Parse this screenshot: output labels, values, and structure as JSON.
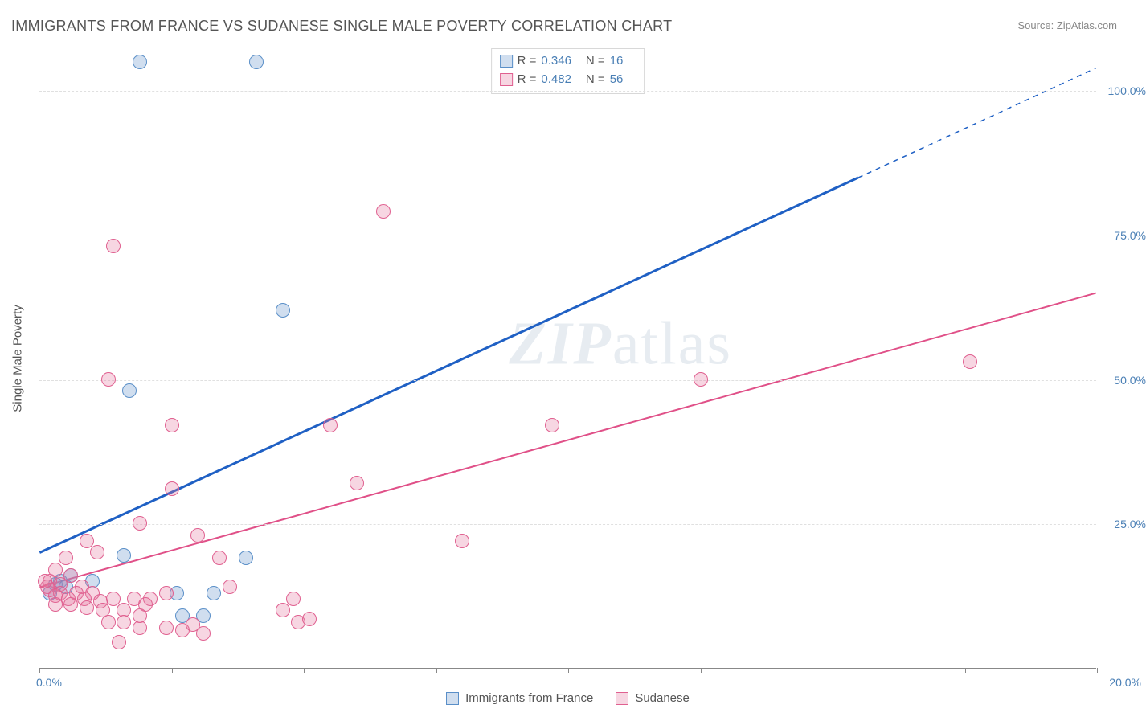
{
  "title": "IMMIGRANTS FROM FRANCE VS SUDANESE SINGLE MALE POVERTY CORRELATION CHART",
  "source_label": "Source: ZipAtlas.com",
  "y_axis_title": "Single Male Poverty",
  "watermark": {
    "bold": "ZIP",
    "rest": "atlas"
  },
  "chart": {
    "type": "scatter",
    "xlim": [
      0,
      20
    ],
    "ylim": [
      0,
      108
    ],
    "x_tick_step": 2.5,
    "y_tick_step": 25,
    "x_tick_labels": {
      "0": "0.0%",
      "20": "20.0%"
    },
    "y_tick_labels": {
      "25": "25.0%",
      "50": "50.0%",
      "75": "75.0%",
      "100": "100.0%"
    },
    "grid_color": "#e0e0e0",
    "axis_color": "#888888",
    "label_color": "#4a7fb5",
    "background_color": "#ffffff"
  },
  "series": [
    {
      "key": "france",
      "label": "Immigrants from France",
      "r": "0.346",
      "n": "16",
      "marker_fill": "rgba(120,160,210,0.35)",
      "marker_stroke": "#5a8fc8",
      "line_color": "#1f60c4",
      "line_width": 3,
      "trend": {
        "x1": 0,
        "y1": 20,
        "x2": 15.5,
        "y2": 85,
        "dash_after_x": 15.5,
        "dash_x2": 20,
        "dash_y2": 104
      },
      "points": [
        [
          1.9,
          105
        ],
        [
          4.1,
          105
        ],
        [
          4.6,
          62
        ],
        [
          1.7,
          48
        ],
        [
          1.6,
          19.5
        ],
        [
          3.9,
          19
        ],
        [
          1.0,
          15
        ],
        [
          2.6,
          13
        ],
        [
          3.3,
          13
        ],
        [
          2.7,
          9
        ],
        [
          3.1,
          9
        ],
        [
          0.4,
          15
        ],
        [
          0.2,
          13
        ],
        [
          0.6,
          16
        ],
        [
          0.3,
          14.5
        ],
        [
          0.5,
          14
        ]
      ]
    },
    {
      "key": "sudanese",
      "label": "Sudanese",
      "r": "0.482",
      "n": "56",
      "marker_fill": "rgba(230,120,160,0.30)",
      "marker_stroke": "#e06090",
      "line_color": "#e05088",
      "line_width": 2,
      "trend": {
        "x1": 0,
        "y1": 14,
        "x2": 20,
        "y2": 65
      },
      "points": [
        [
          1.4,
          73
        ],
        [
          1.3,
          50
        ],
        [
          2.5,
          42
        ],
        [
          6.5,
          79
        ],
        [
          5.5,
          42
        ],
        [
          6.0,
          32
        ],
        [
          2.5,
          31
        ],
        [
          1.9,
          25
        ],
        [
          3.0,
          23
        ],
        [
          3.4,
          19
        ],
        [
          8.0,
          22
        ],
        [
          9.7,
          42
        ],
        [
          17.6,
          53
        ],
        [
          12.5,
          50
        ],
        [
          0.9,
          22
        ],
        [
          0.5,
          19
        ],
        [
          1.1,
          20
        ],
        [
          0.3,
          17
        ],
        [
          0.6,
          16
        ],
        [
          0.2,
          15
        ],
        [
          0.4,
          14.5
        ],
        [
          0.8,
          14
        ],
        [
          0.15,
          14
        ],
        [
          0.2,
          13.5
        ],
        [
          0.4,
          13
        ],
        [
          0.7,
          13
        ],
        [
          1.0,
          13
        ],
        [
          0.3,
          12.5
        ],
        [
          0.55,
          12
        ],
        [
          0.85,
          12
        ],
        [
          1.15,
          11.5
        ],
        [
          1.4,
          12
        ],
        [
          1.8,
          12
        ],
        [
          2.1,
          12
        ],
        [
          0.3,
          11
        ],
        [
          0.6,
          11
        ],
        [
          0.9,
          10.5
        ],
        [
          1.2,
          10
        ],
        [
          1.6,
          10
        ],
        [
          2.0,
          11
        ],
        [
          2.4,
          13
        ],
        [
          1.3,
          8
        ],
        [
          1.6,
          8
        ],
        [
          1.9,
          7
        ],
        [
          2.4,
          7
        ],
        [
          2.7,
          6.5
        ],
        [
          2.9,
          7.5
        ],
        [
          3.1,
          6
        ],
        [
          1.5,
          4.5
        ],
        [
          1.9,
          9
        ],
        [
          4.6,
          10
        ],
        [
          4.9,
          8
        ],
        [
          5.1,
          8.5
        ],
        [
          4.8,
          12
        ],
        [
          3.6,
          14
        ],
        [
          0.1,
          15
        ]
      ]
    }
  ],
  "legend_top_labels": {
    "r_prefix": "R =",
    "n_prefix": "N ="
  }
}
